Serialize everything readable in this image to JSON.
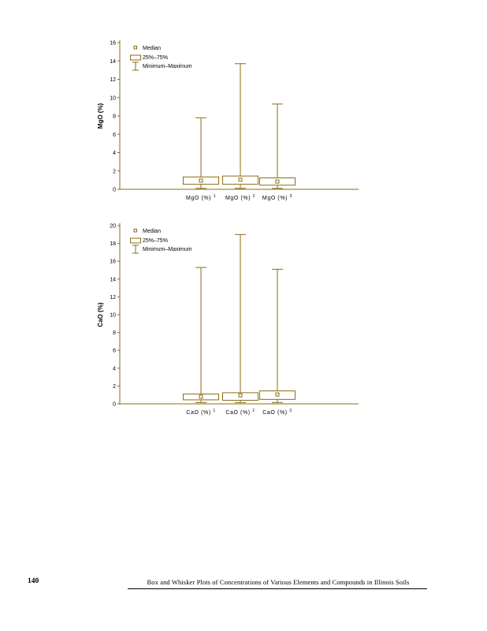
{
  "page": {
    "number": "140",
    "footer": "Box and Whisker Plots of Concentrations of Various Elements and Compounds in Illinois Soils"
  },
  "colors": {
    "accent": "#8a6d14",
    "text": "#000000",
    "background": "#ffffff"
  },
  "chart_data": [
    {
      "type": "box",
      "title": "",
      "ylabel": "MgO (%)",
      "xlabel": "",
      "ylim": [
        0,
        16
      ],
      "ytick_step": 2,
      "grid": false,
      "legend": [
        "Median",
        "25%–75%",
        "Minimum–Maximum"
      ],
      "legend_position": "top-left-inside",
      "categories": [
        "MgO (%)",
        "MgO (%)",
        "MgO (%)"
      ],
      "category_sups": [
        "1",
        "2",
        "3"
      ],
      "series": [
        {
          "name": "MgO (%) 1",
          "min": 0.1,
          "q1": 0.55,
          "median": 0.95,
          "q3": 1.35,
          "max": 7.8
        },
        {
          "name": "MgO (%) 2",
          "min": 0.1,
          "q1": 0.55,
          "median": 1.05,
          "q3": 1.45,
          "max": 13.7
        },
        {
          "name": "MgO (%) 3",
          "min": 0.1,
          "q1": 0.45,
          "median": 0.85,
          "q3": 1.25,
          "max": 9.3
        }
      ]
    },
    {
      "type": "box",
      "title": "",
      "ylabel": "CaO (%)",
      "xlabel": "",
      "ylim": [
        0,
        20
      ],
      "ytick_step": 2,
      "grid": false,
      "legend": [
        "Median",
        "25%–75%",
        "Minimum–Maximum"
      ],
      "legend_position": "top-left-inside",
      "categories": [
        "CaO (%)",
        "CaO (%)",
        "CaO (%)"
      ],
      "category_sups": [
        "1",
        "2",
        "3"
      ],
      "series": [
        {
          "name": "CaO (%) 1",
          "min": 0.15,
          "q1": 0.45,
          "median": 0.8,
          "q3": 1.1,
          "max": 15.3
        },
        {
          "name": "CaO (%) 2",
          "min": 0.15,
          "q1": 0.4,
          "median": 0.95,
          "q3": 1.25,
          "max": 19.0
        },
        {
          "name": "CaO (%) 3",
          "min": 0.15,
          "q1": 0.5,
          "median": 1.05,
          "q3": 1.45,
          "max": 15.1
        }
      ]
    }
  ]
}
